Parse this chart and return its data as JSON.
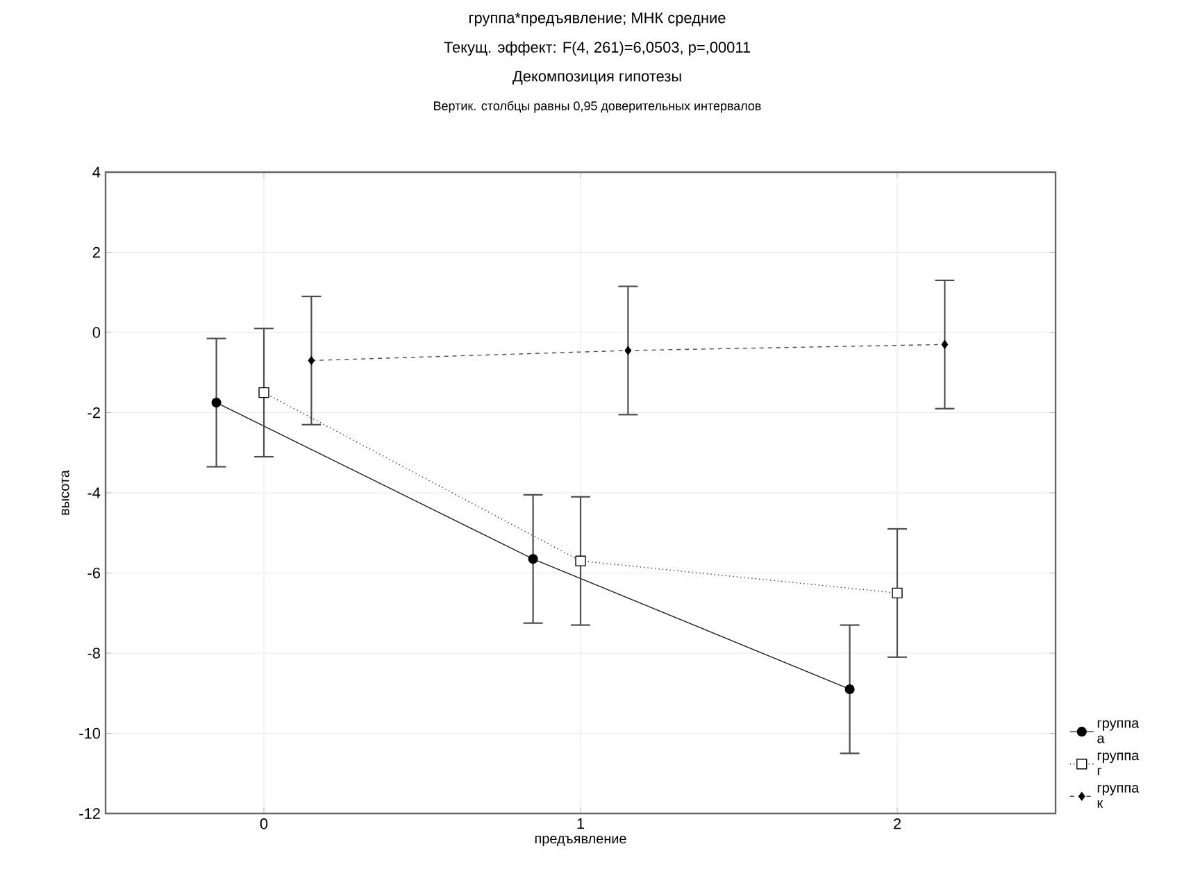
{
  "chart_data": {
    "type": "line",
    "title": "группа*предъявление; МНК средние",
    "subtitle": "Текущ. эффект: F(4, 261)=6,0503, p=,00011",
    "annotations": [
      "Декомпозиция гипотезы",
      "Вертик. столбцы равны 0,95 доверительных интервалов"
    ],
    "xlabel": "предъявление",
    "ylabel": "высота",
    "xlim": [
      -0.5,
      2.5
    ],
    "xticks": [
      0,
      1,
      2
    ],
    "ylim": [
      -12,
      4
    ],
    "yticks": [
      -12,
      -10,
      -8,
      -6,
      -4,
      -2,
      0,
      2,
      4
    ],
    "grid": true,
    "legend": "bottom right",
    "series": [
      {
        "name": "группа а",
        "color": "#1a1a1a",
        "marker": "circle",
        "line_style": "solid",
        "x": [
          -0.15,
          0.85,
          1.85
        ],
        "values": [
          -1.75,
          -5.65,
          -8.9
        ],
        "errors": [
          1.6,
          1.6,
          1.6
        ]
      },
      {
        "name": "группа г",
        "color": "#333333",
        "marker": "square",
        "line_style": "dotted",
        "x": [
          0,
          1,
          2
        ],
        "values": [
          -1.5,
          -5.7,
          -6.5
        ],
        "errors": [
          1.6,
          1.6,
          1.6
        ]
      },
      {
        "name": "группа к",
        "color": "#4d4d4d",
        "marker": "diamond",
        "line_style": "dashed",
        "x": [
          0.15,
          1.15,
          2.15
        ],
        "values": [
          -0.7,
          -0.45,
          -0.3
        ],
        "errors": [
          1.6,
          1.6,
          1.6
        ]
      }
    ]
  }
}
